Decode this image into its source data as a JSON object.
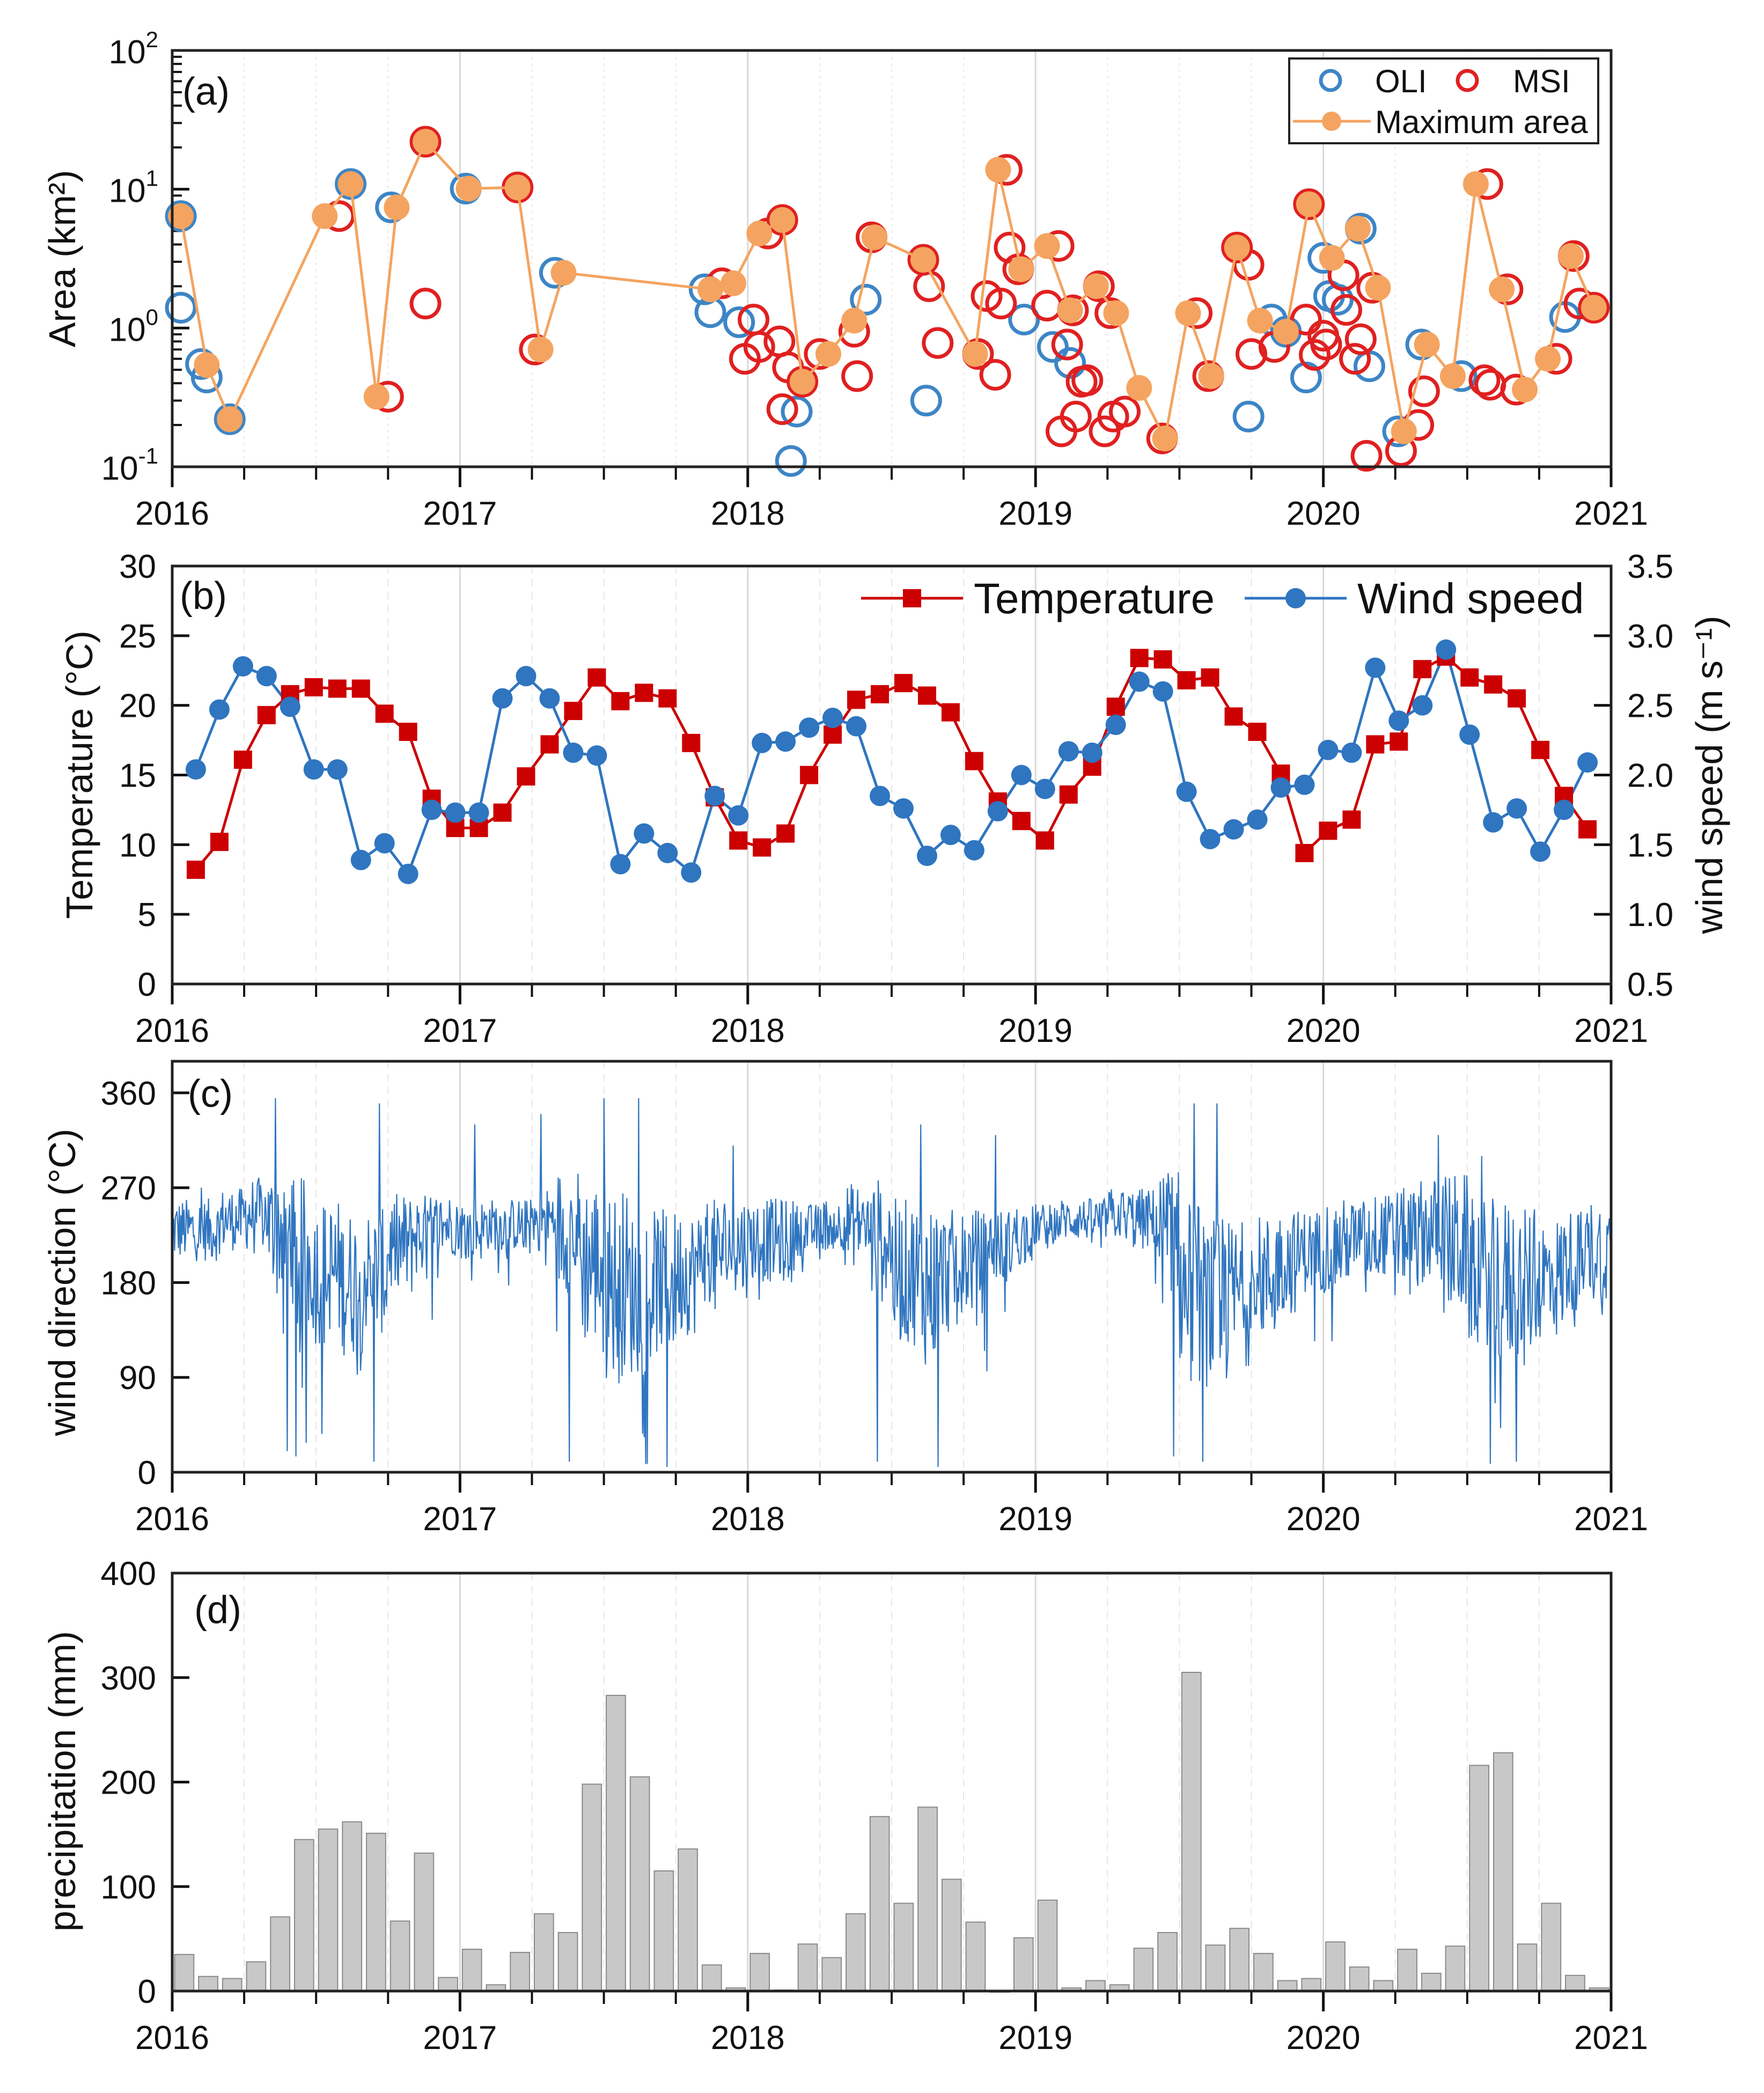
{
  "colors": {
    "oli": "#3d85c6",
    "msi": "#e02020",
    "max_area": "#f4a460",
    "temperature": "#cc0000",
    "wind_speed": "#2f75c0",
    "wind_direction": "#2f75c0",
    "precip": "#c8c8c8"
  },
  "chart_data": [
    {
      "panel": "(a)",
      "type": "scatter",
      "yscale": "log",
      "ylabel": "Area (km²)",
      "xlim": [
        2016,
        2021
      ],
      "ylim": [
        0.1,
        100
      ],
      "xticks": [
        "2016",
        "2017",
        "2018",
        "2019",
        "2020",
        "2021"
      ],
      "yticks": [
        {
          "base": "10",
          "exp": "-1"
        },
        {
          "base": "10",
          "exp": "0"
        },
        {
          "base": "10",
          "exp": "1"
        },
        {
          "base": "10",
          "exp": "2"
        }
      ],
      "legend": {
        "position": "top-right",
        "oli": "OLI",
        "msi": "MSI",
        "max": "Maximum area"
      },
      "series": [
        {
          "name": "OLI",
          "points": [
            [
              2016.03,
              6.4
            ],
            [
              2016.03,
              1.4
            ],
            [
              2016.1,
              0.55
            ],
            [
              2016.12,
              0.44
            ],
            [
              2016.2,
              0.22
            ],
            [
              2016.62,
              10.9
            ],
            [
              2016.76,
              7.4
            ],
            [
              2017.02,
              10.1
            ],
            [
              2017.33,
              2.5
            ],
            [
              2017.85,
              1.9
            ],
            [
              2017.87,
              1.3
            ],
            [
              2017.97,
              1.1
            ],
            [
              2018.15,
              0.11
            ],
            [
              2018.17,
              0.25
            ],
            [
              2018.41,
              1.6
            ],
            [
              2018.62,
              0.3
            ],
            [
              2018.96,
              1.15
            ],
            [
              2019.06,
              0.73
            ],
            [
              2019.12,
              0.56
            ],
            [
              2019.74,
              0.23
            ],
            [
              2019.82,
              1.15
            ],
            [
              2019.87,
              0.94
            ],
            [
              2019.94,
              0.44
            ],
            [
              2020.0,
              3.2
            ],
            [
              2020.02,
              1.7
            ],
            [
              2020.05,
              1.6
            ],
            [
              2020.13,
              5.2
            ],
            [
              2020.16,
              0.53
            ],
            [
              2020.26,
              0.18
            ],
            [
              2020.34,
              0.76
            ],
            [
              2020.48,
              0.45
            ],
            [
              2020.84,
              1.2
            ]
          ]
        },
        {
          "name": "MSI",
          "points": [
            [
              2016.58,
              6.4
            ],
            [
              2016.75,
              0.32
            ],
            [
              2016.88,
              22
            ],
            [
              2016.88,
              1.5
            ],
            [
              2017.2,
              10.3
            ],
            [
              2017.26,
              0.7
            ],
            [
              2017.91,
              2.1
            ],
            [
              2018.02,
              1.15
            ],
            [
              2017.99,
              0.6
            ],
            [
              2018.04,
              0.73
            ],
            [
              2018.07,
              4.8
            ],
            [
              2018.11,
              0.8
            ],
            [
              2018.12,
              6.0
            ],
            [
              2018.12,
              0.26
            ],
            [
              2018.14,
              0.52
            ],
            [
              2018.19,
              0.41
            ],
            [
              2018.25,
              0.65
            ],
            [
              2018.37,
              0.94
            ],
            [
              2018.38,
              0.45
            ],
            [
              2018.43,
              4.5
            ],
            [
              2018.61,
              3.1
            ],
            [
              2018.63,
              2.0
            ],
            [
              2018.66,
              0.78
            ],
            [
              2018.8,
              0.65
            ],
            [
              2018.83,
              1.7
            ],
            [
              2018.86,
              0.46
            ],
            [
              2018.88,
              1.5
            ],
            [
              2018.9,
              13.8
            ],
            [
              2018.91,
              3.8
            ],
            [
              2018.94,
              2.65
            ],
            [
              2019.04,
              1.45
            ],
            [
              2019.08,
              3.9
            ],
            [
              2019.09,
              0.18
            ],
            [
              2019.11,
              0.76
            ],
            [
              2019.13,
              1.34
            ],
            [
              2019.14,
              0.23
            ],
            [
              2019.16,
              0.41
            ],
            [
              2019.18,
              0.42
            ],
            [
              2019.22,
              2.0
            ],
            [
              2019.24,
              0.18
            ],
            [
              2019.27,
              0.23
            ],
            [
              2019.31,
              0.25
            ],
            [
              2019.26,
              1.28
            ],
            [
              2019.44,
              0.16
            ],
            [
              2019.56,
              1.28
            ],
            [
              2019.6,
              0.45
            ],
            [
              2019.7,
              3.8
            ],
            [
              2019.74,
              2.85
            ],
            [
              2019.75,
              0.65
            ],
            [
              2019.83,
              0.73
            ],
            [
              2019.94,
              1.15
            ],
            [
              2019.95,
              7.8
            ],
            [
              2019.97,
              0.64
            ],
            [
              2020.0,
              0.88
            ],
            [
              2020.01,
              0.76
            ],
            [
              2020.07,
              2.4
            ],
            [
              2020.08,
              1.35
            ],
            [
              2020.11,
              0.6
            ],
            [
              2020.13,
              0.83
            ],
            [
              2020.15,
              0.12
            ],
            [
              2020.17,
              1.95
            ],
            [
              2020.27,
              0.13
            ],
            [
              2020.33,
              0.2
            ],
            [
              2020.35,
              0.35
            ],
            [
              2020.56,
              0.42
            ],
            [
              2020.57,
              10.9
            ],
            [
              2020.58,
              0.39
            ],
            [
              2020.64,
              1.9
            ],
            [
              2020.67,
              0.36
            ],
            [
              2020.81,
              0.6
            ],
            [
              2020.87,
              3.3
            ],
            [
              2020.89,
              1.5
            ],
            [
              2020.94,
              1.4
            ]
          ]
        },
        {
          "name": "Maximum area",
          "points": [
            [
              2016.03,
              6.4
            ],
            [
              2016.12,
              0.54
            ],
            [
              2016.2,
              0.22
            ],
            [
              2016.53,
              6.4
            ],
            [
              2016.62,
              10.9
            ],
            [
              2016.71,
              0.32
            ],
            [
              2016.78,
              7.4
            ],
            [
              2016.88,
              22
            ],
            [
              2017.03,
              10.1
            ],
            [
              2017.2,
              10.3
            ],
            [
              2017.28,
              0.7
            ],
            [
              2017.36,
              2.5
            ],
            [
              2017.87,
              1.9
            ],
            [
              2017.95,
              2.1
            ],
            [
              2018.04,
              4.8
            ],
            [
              2018.12,
              6.0
            ],
            [
              2018.19,
              0.41
            ],
            [
              2018.28,
              0.65
            ],
            [
              2018.37,
              1.13
            ],
            [
              2018.44,
              4.5
            ],
            [
              2018.61,
              3.1
            ],
            [
              2018.79,
              0.65
            ],
            [
              2018.87,
              13.8
            ],
            [
              2018.95,
              2.65
            ],
            [
              2019.04,
              3.9
            ],
            [
              2019.12,
              1.34
            ],
            [
              2019.21,
              2.0
            ],
            [
              2019.28,
              1.28
            ],
            [
              2019.36,
              0.37
            ],
            [
              2019.45,
              0.16
            ],
            [
              2019.53,
              1.28
            ],
            [
              2019.61,
              0.45
            ],
            [
              2019.7,
              3.8
            ],
            [
              2019.78,
              1.13
            ],
            [
              2019.87,
              0.94
            ],
            [
              2019.95,
              7.8
            ],
            [
              2020.03,
              3.2
            ],
            [
              2020.12,
              5.2
            ],
            [
              2020.19,
              1.95
            ],
            [
              2020.28,
              0.18
            ],
            [
              2020.36,
              0.76
            ],
            [
              2020.45,
              0.45
            ],
            [
              2020.53,
              10.9
            ],
            [
              2020.62,
              1.9
            ],
            [
              2020.7,
              0.36
            ],
            [
              2020.78,
              0.6
            ],
            [
              2020.86,
              3.3
            ],
            [
              2020.94,
              1.4
            ]
          ]
        }
      ]
    },
    {
      "panel": "(b)",
      "type": "line",
      "ylabel": "Temperature (°C)",
      "y2label": "wind speed (m s⁻¹)",
      "xlim": [
        2016,
        2021
      ],
      "ylim": [
        0,
        30
      ],
      "y2lim": [
        0.5,
        3.5
      ],
      "xticks": [
        "2016",
        "2017",
        "2018",
        "2019",
        "2020",
        "2021"
      ],
      "yticks": [
        "0",
        "5",
        "10",
        "15",
        "20",
        "25",
        "30"
      ],
      "y2ticks": [
        "0.5",
        "1.0",
        "1.5",
        "2.0",
        "2.5",
        "3.0",
        "3.5"
      ],
      "legend": {
        "position": "top-right",
        "temperature": "Temperature",
        "wind": "Wind speed"
      },
      "x_start": "2016-01",
      "interval": "monthly",
      "series": [
        {
          "name": "Temperature",
          "axis": "left",
          "values": [
            8.2,
            10.2,
            16.1,
            19.3,
            20.8,
            21.3,
            21.2,
            21.2,
            19.4,
            18.1,
            13.3,
            11.2,
            11.2,
            12.3,
            14.9,
            17.2,
            19.6,
            22.0,
            20.3,
            20.9,
            20.5,
            17.3,
            13.4,
            10.3,
            9.8,
            10.8,
            15.0,
            17.9,
            20.4,
            20.8,
            21.6,
            20.7,
            19.5,
            16.0,
            13.1,
            11.7,
            10.3,
            13.6,
            15.6,
            19.9,
            23.4,
            23.3,
            21.8,
            22.0,
            19.2,
            18.1,
            15.1,
            9.4,
            11.0,
            11.8,
            17.2,
            17.4,
            22.6,
            23.5,
            22.0,
            21.5,
            20.5,
            16.8,
            13.5,
            11.1
          ]
        },
        {
          "name": "Wind speed",
          "axis": "right",
          "values": [
            2.04,
            2.47,
            2.78,
            2.71,
            2.49,
            2.04,
            2.04,
            1.39,
            1.51,
            1.29,
            1.75,
            1.73,
            1.73,
            2.55,
            2.71,
            2.55,
            2.16,
            2.14,
            1.36,
            1.58,
            1.44,
            1.3,
            1.85,
            1.71,
            2.23,
            2.24,
            2.34,
            2.41,
            2.35,
            1.85,
            1.76,
            1.42,
            1.57,
            1.46,
            1.74,
            2.0,
            1.9,
            2.17,
            2.16,
            2.36,
            2.67,
            2.6,
            1.88,
            1.54,
            1.61,
            1.68,
            1.91,
            1.93,
            2.18,
            2.16,
            2.77,
            2.39,
            2.5,
            2.9,
            2.29,
            1.66,
            1.76,
            1.45,
            1.75,
            2.09
          ]
        }
      ]
    },
    {
      "panel": "(c)",
      "type": "line",
      "interval": "daily",
      "ylabel": "wind direction (°C)",
      "xlim": [
        2016,
        2021
      ],
      "ylim": [
        0,
        390
      ],
      "xticks": [
        "2016",
        "2017",
        "2018",
        "2019",
        "2020",
        "2021"
      ],
      "yticks": [
        "0",
        "90",
        "180",
        "270",
        "360"
      ],
      "monthly_center": [
        230,
        230,
        240,
        245,
        230,
        200,
        190,
        180,
        190,
        215,
        225,
        235,
        230,
        235,
        235,
        240,
        230,
        200,
        180,
        170,
        180,
        190,
        210,
        215,
        220,
        220,
        230,
        235,
        235,
        220,
        190,
        180,
        190,
        200,
        215,
        225,
        235,
        240,
        240,
        245,
        240,
        230,
        170,
        160,
        170,
        185,
        200,
        210,
        215,
        220,
        225,
        225,
        230,
        215,
        190,
        180,
        180,
        185,
        200,
        210
      ],
      "monthly_spread": [
        30,
        30,
        30,
        35,
        60,
        80,
        70,
        70,
        60,
        50,
        40,
        30,
        30,
        25,
        25,
        30,
        60,
        80,
        90,
        80,
        70,
        60,
        50,
        50,
        40,
        40,
        25,
        25,
        40,
        60,
        70,
        80,
        60,
        50,
        35,
        30,
        20,
        20,
        20,
        25,
        30,
        60,
        90,
        80,
        70,
        60,
        50,
        40,
        45,
        40,
        40,
        45,
        50,
        70,
        70,
        80,
        70,
        60,
        50,
        50
      ],
      "extremes": [
        [
          2016.1,
          270
        ],
        [
          2016.36,
          355
        ],
        [
          2016.4,
          20
        ],
        [
          2016.43,
          15
        ],
        [
          2016.7,
          10
        ],
        [
          2016.72,
          350
        ],
        [
          2017.05,
          330
        ],
        [
          2017.28,
          340
        ],
        [
          2017.38,
          10
        ],
        [
          2017.5,
          355
        ],
        [
          2017.62,
          355
        ],
        [
          2017.65,
          8
        ],
        [
          2017.72,
          5
        ],
        [
          2017.95,
          310
        ],
        [
          2018.45,
          10
        ],
        [
          2018.6,
          330
        ],
        [
          2018.66,
          5
        ],
        [
          2018.86,
          320
        ],
        [
          2019.48,
          15
        ],
        [
          2019.55,
          350
        ],
        [
          2019.58,
          10
        ],
        [
          2019.63,
          350
        ],
        [
          2020.4,
          320
        ],
        [
          2020.55,
          300
        ],
        [
          2020.58,
          8
        ],
        [
          2020.67,
          10
        ]
      ]
    },
    {
      "panel": "(d)",
      "type": "bar",
      "interval": "monthly",
      "x_start": "2016-01",
      "ylabel": "precipitation (mm)",
      "xlim": [
        2016,
        2021
      ],
      "ylim": [
        0,
        400
      ],
      "xticks": [
        "2016",
        "2017",
        "2018",
        "2019",
        "2020",
        "2021"
      ],
      "yticks": [
        "0",
        "100",
        "200",
        "300",
        "400"
      ],
      "values": [
        35,
        14,
        12,
        28,
        71,
        145,
        155,
        162,
        151,
        67,
        132,
        13,
        40,
        6,
        37,
        74,
        56,
        198,
        283,
        205,
        115,
        136,
        25,
        3,
        36,
        1,
        45,
        32,
        74,
        167,
        84,
        176,
        107,
        66,
        0,
        51,
        87,
        3,
        10,
        6,
        41,
        56,
        305,
        44,
        60,
        36,
        10,
        12,
        47,
        23,
        10,
        40,
        17,
        43,
        216,
        228,
        45,
        84,
        15,
        3
      ]
    }
  ]
}
